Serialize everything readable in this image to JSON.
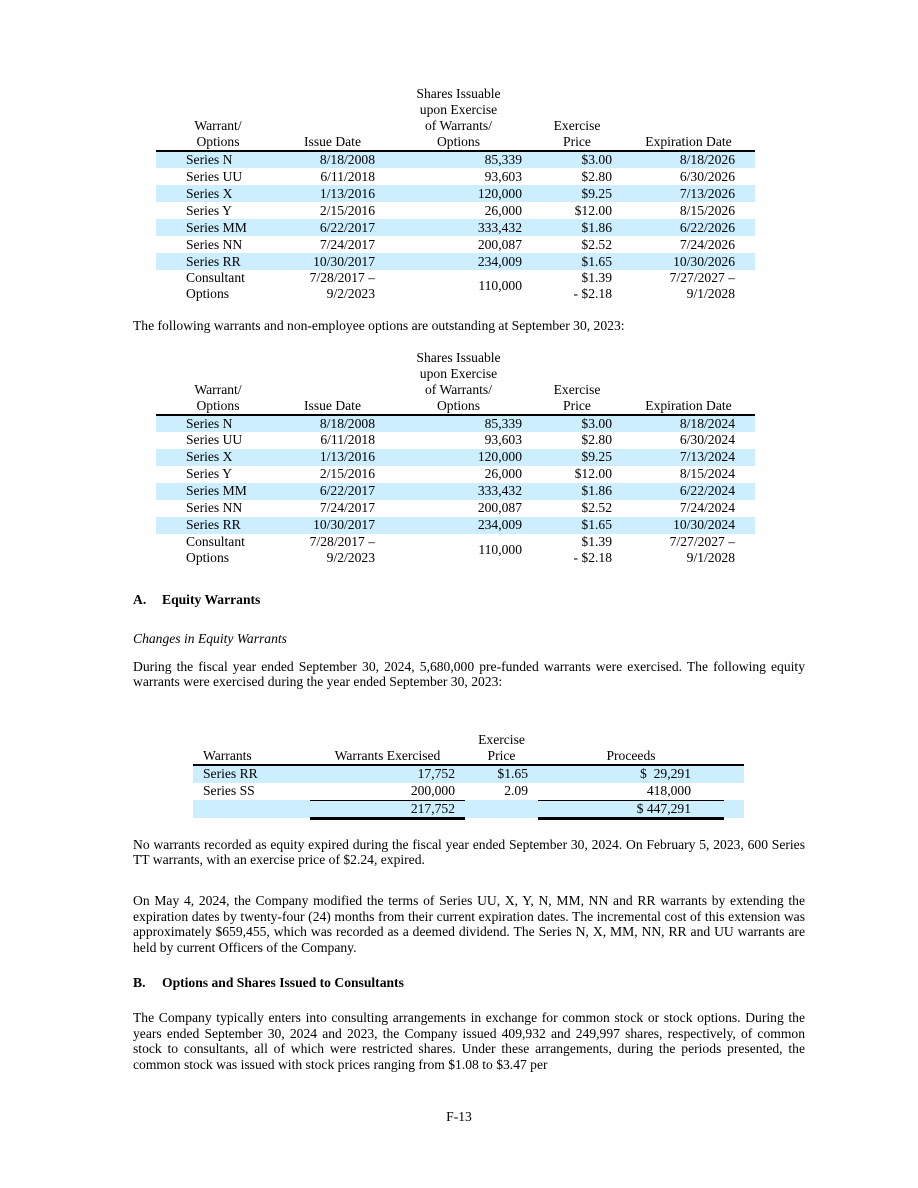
{
  "stripe_color": "#cceeff",
  "warrant_table_headers": {
    "warrant_options": [
      "Warrant/",
      "Options"
    ],
    "issue_date": [
      "Issue Date"
    ],
    "shares_issuable": [
      "Shares Issuable",
      "upon Exercise",
      "of Warrants/",
      "Options"
    ],
    "exercise_price": [
      "Exercise",
      "Price"
    ],
    "expiration_date": [
      "Expiration Date"
    ]
  },
  "outstanding_2024_table": {
    "rows": [
      {
        "warrant": "Series N",
        "issue": "8/18/2008",
        "shares": "85,339",
        "price": "$3.00",
        "expiration": "8/18/2026"
      },
      {
        "warrant": "Series UU",
        "issue": "6/11/2018",
        "shares": "93,603",
        "price": "$2.80",
        "expiration": "6/30/2026"
      },
      {
        "warrant": "Series X",
        "issue": "1/13/2016",
        "shares": "120,000",
        "price": "$9.25",
        "expiration": "7/13/2026"
      },
      {
        "warrant": "Series Y",
        "issue": "2/15/2016",
        "shares": "26,000",
        "price": "$12.00",
        "expiration": "8/15/2026"
      },
      {
        "warrant": "Series MM",
        "issue": "6/22/2017",
        "shares": "333,432",
        "price": "$1.86",
        "expiration": "6/22/2026"
      },
      {
        "warrant": "Series NN",
        "issue": "7/24/2017",
        "shares": "200,087",
        "price": "$2.52",
        "expiration": "7/24/2026"
      },
      {
        "warrant": "Series RR",
        "issue": "10/30/2017",
        "shares": "234,009",
        "price": "$1.65",
        "expiration": "10/30/2026"
      },
      {
        "warrant": [
          "Consultant",
          "Options"
        ],
        "issue": [
          "7/28/2017 –",
          "9/2/2023"
        ],
        "shares": "110,000",
        "price": [
          "$1.39",
          "- $2.18"
        ],
        "expiration": [
          "7/27/2027 –",
          "9/1/2028"
        ],
        "cls": "tall"
      }
    ]
  },
  "intro_2023": "The following warrants and non-employee options are outstanding at September 30, 2023:",
  "outstanding_2023_table": {
    "rows": [
      {
        "warrant": "Series N",
        "issue": "8/18/2008",
        "shares": "85,339",
        "price": "$3.00",
        "expiration": "8/18/2024"
      },
      {
        "warrant": "Series UU",
        "issue": "6/11/2018",
        "shares": "93,603",
        "price": "$2.80",
        "expiration": "6/30/2024"
      },
      {
        "warrant": "Series X",
        "issue": "1/13/2016",
        "shares": "120,000",
        "price": "$9.25",
        "expiration": "7/13/2024"
      },
      {
        "warrant": "Series Y",
        "issue": "2/15/2016",
        "shares": "26,000",
        "price": "$12.00",
        "expiration": "8/15/2024"
      },
      {
        "warrant": "Series MM",
        "issue": "6/22/2017",
        "shares": "333,432",
        "price": "$1.86",
        "expiration": "6/22/2024"
      },
      {
        "warrant": "Series NN",
        "issue": "7/24/2017",
        "shares": "200,087",
        "price": "$2.52",
        "expiration": "7/24/2024"
      },
      {
        "warrant": "Series RR",
        "issue": "10/30/2017",
        "shares": "234,009",
        "price": "$1.65",
        "expiration": "10/30/2024"
      },
      {
        "warrant": [
          "Consultant",
          "Options"
        ],
        "issue": [
          "7/28/2017 –",
          "9/2/2023"
        ],
        "shares": "110,000",
        "price": [
          "$1.39",
          "- $2.18"
        ],
        "expiration": [
          "7/27/2027 –",
          "9/1/2028"
        ],
        "cls": "tall"
      }
    ]
  },
  "section_a": {
    "label": "A.",
    "title": "Equity Warrants"
  },
  "subheading_changes": "Changes in Equity Warrants",
  "para_exercised": "During the fiscal year ended September 30, 2024, 5,680,000 pre-funded warrants were exercised. The following equity warrants were exercised during the year ended September 30, 2023:",
  "exercised_table": {
    "headers": {
      "warrants": "Warrants",
      "warrants_exercised": "Warrants Exercised",
      "exercise_price": "Exercise Price",
      "proceeds": "Proceeds"
    },
    "rows": [
      {
        "warrants": "Series RR",
        "exercised": "17,752",
        "price": "$1.65",
        "proceeds": "$  29,291",
        "cls": ""
      },
      {
        "warrants": "Series SS",
        "exercised": "200,000",
        "price": "2.09",
        "proceeds": "418,000",
        "cls": "rule"
      },
      {
        "warrants": "",
        "exercised": "217,752",
        "price": "",
        "proceeds": "$ 447,291",
        "cls": "total"
      }
    ]
  },
  "para_expired": "No warrants recorded as equity expired during the fiscal year ended September 30, 2024. On February 5, 2023, 600 Series TT warrants, with an exercise price of $2.24, expired.",
  "para_modification": "On May 4, 2024, the Company modified the terms of Series UU, X, Y, N, MM, NN and RR warrants by extending the expiration dates by twenty-four (24) months from their current expiration dates.  The incremental cost of this extension was approximately $659,455, which was recorded as a deemed dividend. The Series N, X, MM, NN, RR and UU warrants are held by current Officers of the Company.",
  "section_b": {
    "label": "B.",
    "title": "Options and Shares Issued to Consultants"
  },
  "para_consultants": "The Company typically enters into consulting arrangements in exchange for common stock or stock options. During the years ended September 30, 2024 and 2023, the Company issued 409,932 and 249,997 shares, respectively, of common stock to consultants, all of which were restricted shares.  Under these arrangements, during the periods presented, the common stock was issued with stock prices ranging from $1.08 to $3.47 per",
  "footer_label": "F-13"
}
